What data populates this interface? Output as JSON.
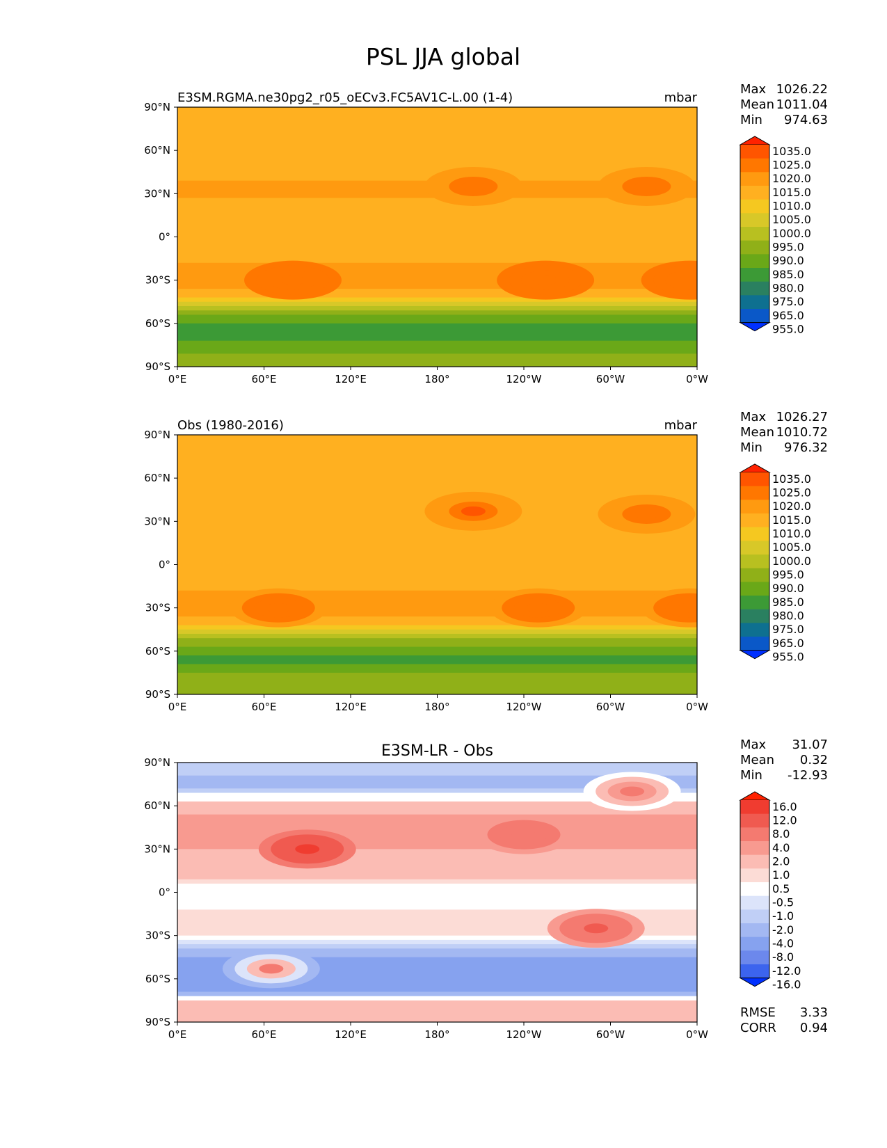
{
  "figure": {
    "title": "PSL JJA global"
  },
  "chart_data": [
    {
      "type": "heatmap",
      "panel_title_left": "E3SM.RGMA.ne30pg2_r05_oECv3.FC5AV1C-L.00 (1-4)",
      "panel_title_center": "",
      "units": "mbar",
      "x_ticks": [
        "0°E",
        "60°E",
        "120°E",
        "180°",
        "120°W",
        "60°W",
        "0°W"
      ],
      "y_ticks": [
        "90°N",
        "60°N",
        "30°N",
        "0°",
        "30°S",
        "60°S",
        "90°S"
      ],
      "xlim": [
        0,
        360
      ],
      "ylim": [
        -90,
        90
      ],
      "stats": [
        {
          "label": "Max",
          "value": "1026.22"
        },
        {
          "label": "Mean",
          "value": "1011.04"
        },
        {
          "label": "Min",
          "value": "974.63"
        }
      ],
      "colorbar": {
        "levels": [
          "1035.0",
          "1025.0",
          "1020.0",
          "1015.0",
          "1010.0",
          "1005.0",
          "1000.0",
          "995.0",
          "990.0",
          "985.0",
          "980.0",
          "975.0",
          "965.0",
          "955.0"
        ],
        "colors": [
          "#ff2200",
          "#ff5500",
          "#ff7700",
          "#ff9a10",
          "#ffb020",
          "#f5c820",
          "#d8c828",
          "#b8c020",
          "#90b018",
          "#6aa818",
          "#3c9a36",
          "#2a8060",
          "#0e7090",
          "#0a58c8",
          "#0030ff"
        ]
      },
      "bands": [
        {
          "lat": 90,
          "value": 1013
        },
        {
          "lat": 75,
          "value": 1012
        },
        {
          "lat": 60,
          "value": 1011
        },
        {
          "lat": 45,
          "value": 1014
        },
        {
          "lat": 30,
          "value": 1016
        },
        {
          "lat": 15,
          "value": 1012
        },
        {
          "lat": 0,
          "value": 1010
        },
        {
          "lat": -15,
          "value": 1014
        },
        {
          "lat": -30,
          "value": 1020
        },
        {
          "lat": -40,
          "value": 1013
        },
        {
          "lat": -50,
          "value": 996
        },
        {
          "lat": -60,
          "value": 984
        },
        {
          "lat": -68,
          "value": 980
        },
        {
          "lat": -75,
          "value": 988
        },
        {
          "lat": -90,
          "value": 992
        }
      ],
      "highs": [
        {
          "lon": 205,
          "lat": 35,
          "value": 1024
        },
        {
          "lon": 325,
          "lat": 35,
          "value": 1024
        },
        {
          "lon": 80,
          "lat": -30,
          "value": 1022
        },
        {
          "lon": 255,
          "lat": -30,
          "value": 1021
        },
        {
          "lon": 355,
          "lat": -30,
          "value": 1022
        }
      ]
    },
    {
      "type": "heatmap",
      "panel_title_left": "Obs (1980-2016)",
      "panel_title_center": "",
      "units": "mbar",
      "x_ticks": [
        "0°E",
        "60°E",
        "120°E",
        "180°",
        "120°W",
        "60°W",
        "0°W"
      ],
      "y_ticks": [
        "90°N",
        "60°N",
        "30°N",
        "0°",
        "30°S",
        "60°S",
        "90°S"
      ],
      "xlim": [
        0,
        360
      ],
      "ylim": [
        -90,
        90
      ],
      "stats": [
        {
          "label": "Max",
          "value": "1026.27"
        },
        {
          "label": "Mean",
          "value": "1010.72"
        },
        {
          "label": "Min",
          "value": "976.32"
        }
      ],
      "colorbar": {
        "levels": [
          "1035.0",
          "1025.0",
          "1020.0",
          "1015.0",
          "1010.0",
          "1005.0",
          "1000.0",
          "995.0",
          "990.0",
          "985.0",
          "980.0",
          "975.0",
          "965.0",
          "955.0"
        ],
        "colors": [
          "#ff2200",
          "#ff5500",
          "#ff7700",
          "#ff9a10",
          "#ffb020",
          "#f5c820",
          "#d8c828",
          "#b8c020",
          "#90b018",
          "#6aa818",
          "#3c9a36",
          "#2a8060",
          "#0e7090",
          "#0a58c8",
          "#0030ff"
        ]
      },
      "bands": [
        {
          "lat": 90,
          "value": 1013
        },
        {
          "lat": 75,
          "value": 1012
        },
        {
          "lat": 60,
          "value": 1012
        },
        {
          "lat": 45,
          "value": 1015
        },
        {
          "lat": 30,
          "value": 1014
        },
        {
          "lat": 15,
          "value": 1011
        },
        {
          "lat": 0,
          "value": 1011
        },
        {
          "lat": -15,
          "value": 1014
        },
        {
          "lat": -30,
          "value": 1019
        },
        {
          "lat": -40,
          "value": 1012
        },
        {
          "lat": -50,
          "value": 996
        },
        {
          "lat": -60,
          "value": 986
        },
        {
          "lat": -68,
          "value": 983
        },
        {
          "lat": -75,
          "value": 990
        },
        {
          "lat": -90,
          "value": 995
        }
      ],
      "highs": [
        {
          "lon": 205,
          "lat": 37,
          "value": 1025
        },
        {
          "lon": 325,
          "lat": 35,
          "value": 1024
        },
        {
          "lon": 70,
          "lat": -30,
          "value": 1021
        },
        {
          "lon": 250,
          "lat": -30,
          "value": 1021
        },
        {
          "lon": 355,
          "lat": -30,
          "value": 1021
        }
      ]
    },
    {
      "type": "heatmap",
      "panel_title_left": "",
      "panel_title_center": "E3SM-LR - Obs",
      "units": "",
      "x_ticks": [
        "0°E",
        "60°E",
        "120°E",
        "180°",
        "120°W",
        "60°W",
        "0°W"
      ],
      "y_ticks": [
        "90°N",
        "60°N",
        "30°N",
        "0°",
        "30°S",
        "60°S",
        "90°S"
      ],
      "xlim": [
        0,
        360
      ],
      "ylim": [
        -90,
        90
      ],
      "stats": [
        {
          "label": "Max",
          "value": "31.07"
        },
        {
          "label": "Mean",
          "value": "0.32"
        },
        {
          "label": "Min",
          "value": "-12.93"
        }
      ],
      "extra_stats": [
        {
          "label": "RMSE",
          "value": "3.33"
        },
        {
          "label": "CORR",
          "value": "0.94"
        }
      ],
      "colorbar": {
        "levels": [
          "16.0",
          "12.0",
          "8.0",
          "4.0",
          "2.0",
          "1.0",
          "0.5",
          "-0.5",
          "-1.0",
          "-2.0",
          "-4.0",
          "-8.0",
          "-12.0",
          "-16.0"
        ],
        "colors": [
          "#ff2200",
          "#f03c30",
          "#f05a50",
          "#f47a70",
          "#f89a90",
          "#fbbcb4",
          "#fcdcd6",
          "#ffffff",
          "#dce4fa",
          "#c0cff6",
          "#a3b8f2",
          "#86a2ef",
          "#6c88ec",
          "#3c64ee",
          "#0030ff"
        ]
      },
      "bands": [
        {
          "lat": 90,
          "value": -1.5
        },
        {
          "lat": 75,
          "value": -2.5
        },
        {
          "lat": 60,
          "value": 1.5
        },
        {
          "lat": 45,
          "value": 2.5
        },
        {
          "lat": 30,
          "value": 2.0
        },
        {
          "lat": 15,
          "value": 1.5
        },
        {
          "lat": 0,
          "value": 0.0
        },
        {
          "lat": -15,
          "value": 0.6
        },
        {
          "lat": -30,
          "value": 0.8
        },
        {
          "lat": -40,
          "value": -2.5
        },
        {
          "lat": -50,
          "value": -5.0
        },
        {
          "lat": -60,
          "value": -6.0
        },
        {
          "lat": -68,
          "value": -4.5
        },
        {
          "lat": -75,
          "value": 1.5
        },
        {
          "lat": -90,
          "value": 2.0
        }
      ],
      "highs": [
        {
          "lon": 90,
          "lat": 30,
          "value": 14
        },
        {
          "lon": 290,
          "lat": -25,
          "value": 8
        },
        {
          "lon": 315,
          "lat": 70,
          "value": 4
        },
        {
          "lon": 240,
          "lat": 40,
          "value": 6
        },
        {
          "lon": 65,
          "lat": -53,
          "value": 4
        }
      ]
    }
  ]
}
